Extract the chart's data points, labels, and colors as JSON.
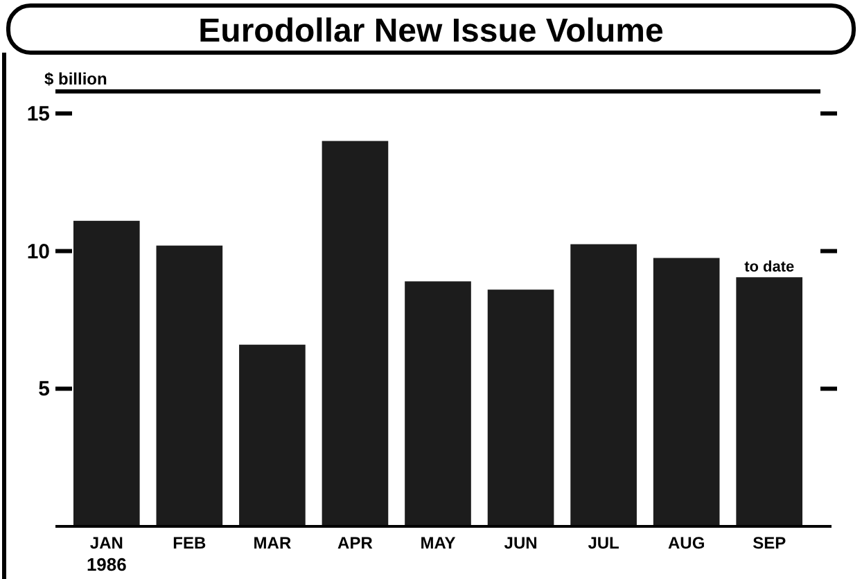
{
  "chart_data": {
    "type": "bar",
    "title": "Eurodollar New Issue Volume",
    "ylabel": "$ billion",
    "categories": [
      "JAN",
      "FEB",
      "MAR",
      "APR",
      "MAY",
      "JUN",
      "JUL",
      "AUG",
      "SEP"
    ],
    "values": [
      11.1,
      10.2,
      6.6,
      14.0,
      8.9,
      8.6,
      10.25,
      9.75,
      9.05
    ],
    "color": "#1c1c1c",
    "ylim": [
      0,
      15.8
    ],
    "yticks": [
      5,
      10,
      15
    ],
    "grid": false,
    "annotations": [
      {
        "text": "to date",
        "x": "SEP",
        "y": 9.05
      },
      "1986"
    ]
  }
}
